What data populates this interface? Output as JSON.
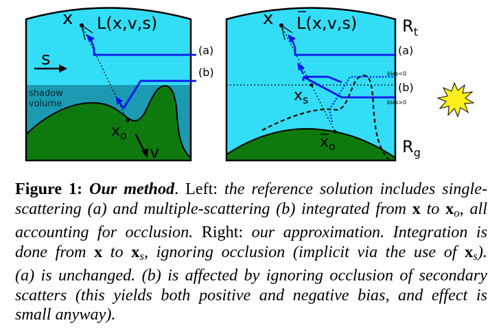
{
  "figure": {
    "left_panel": {
      "eye_label": "x",
      "radiance_label": "L(x,v,s)",
      "sun_dir_label": "s",
      "path_a_label": "(a)",
      "path_b_label": "(b)",
      "shadow_label_line1": "shadow",
      "shadow_label_line2": "volume",
      "hit_label": "x",
      "hit_label_sub": "o",
      "view_label": "v"
    },
    "right_panel": {
      "eye_label": "x",
      "radiance_label": "L(x,v,s)",
      "top_bound_label": "R",
      "top_bound_sub": "t",
      "ground_bound_label": "R",
      "ground_bound_sub": "g",
      "path_a_label": "(a)",
      "path_b_label": "(b)",
      "bias_neg_label": "bias<0",
      "bias_pos_label": "bias>0",
      "shadow_point_label": "x",
      "shadow_point_sub": "s",
      "hit_label": "x",
      "hit_label_sub": "o"
    },
    "colors": {
      "sky": "#33ddf5",
      "shadow": "#1b9ab2",
      "ground": "#0e7a0e",
      "path": "#0a12ee",
      "sun": "#ffef1a"
    }
  },
  "caption": {
    "line1": {
      "fig_label": "Figure 1:",
      "title": "Our method",
      "sep": ". ",
      "left_word": "Left:",
      "text": " the reference solution includes single-"
    },
    "line2": {
      "t1": "scattering (a) and multiple-scattering (b) integrated from ",
      "var1": "x",
      "t2": " to ",
      "var2": "x",
      "var2_sub": "o",
      "t3": ", all"
    },
    "line3": {
      "t1": "accounting for occlusion.",
      "right_word": " Right:",
      "t2": " our approximation. Integration is"
    },
    "line4": {
      "t1": "done from ",
      "var1": "x",
      "t2": " to ",
      "var2": "x",
      "var2_sub": "s",
      "t3": ", ignoring occlusion (implicit via the use of ",
      "var3": "x",
      "var3_sub": "s",
      "t4": ")."
    },
    "line5": "(a) is unchanged. (b) is affected by ignoring occlusion of secondary",
    "line6": "scatters (this yields both positive and negative bias, and effect is",
    "line7": "small anyway)."
  }
}
